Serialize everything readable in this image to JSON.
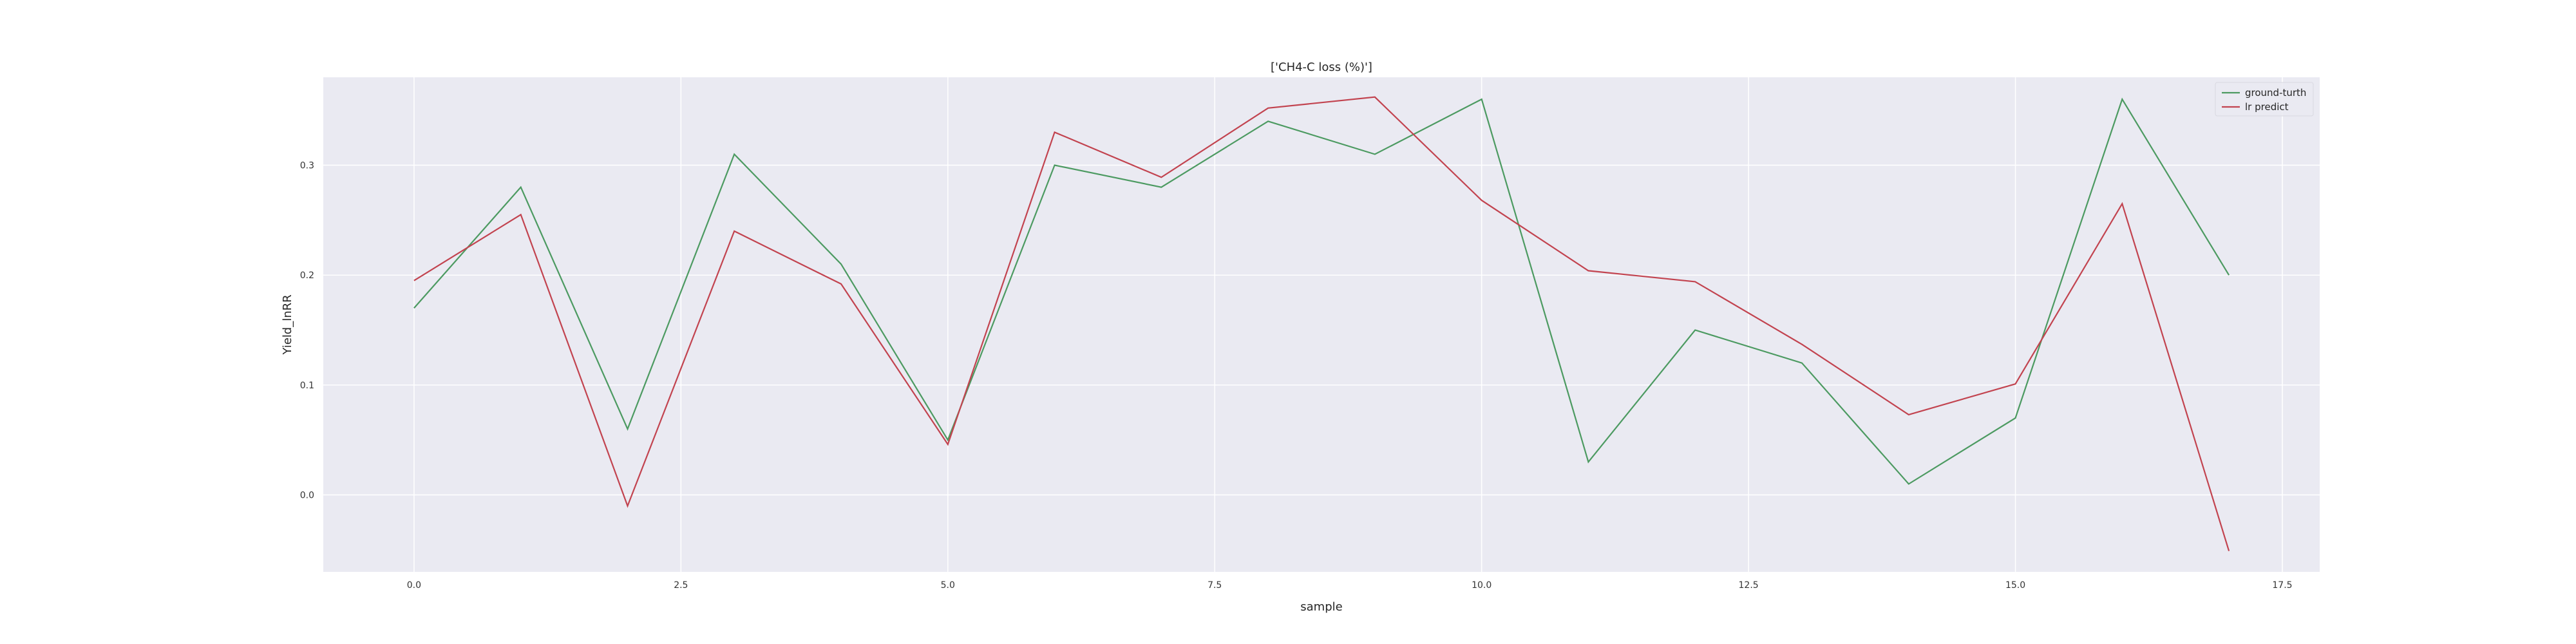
{
  "chart_data": {
    "type": "line",
    "title": "['CH4-C loss (%)']",
    "xlabel": "sample",
    "ylabel": "Yield_lnRR",
    "xlim": [
      -0.85,
      17.85
    ],
    "ylim": [
      -0.07,
      0.38
    ],
    "xticks": [
      0.0,
      2.5,
      5.0,
      7.5,
      10.0,
      12.5,
      15.0,
      17.5
    ],
    "xtick_labels": [
      "0.0",
      "2.5",
      "5.0",
      "7.5",
      "10.0",
      "12.5",
      "15.0",
      "17.5"
    ],
    "yticks": [
      0.0,
      0.1,
      0.2,
      0.3
    ],
    "ytick_labels": [
      "0.0",
      "0.1",
      "0.2",
      "0.3"
    ],
    "grid": true,
    "legend_position": "top-right",
    "x": [
      0,
      1,
      2,
      3,
      4,
      5,
      6,
      7,
      8,
      9,
      10,
      11,
      12,
      13,
      14,
      15,
      16,
      17
    ],
    "series": [
      {
        "name": "ground-turth",
        "color": "#4c9a61",
        "values": [
          0.17,
          0.28,
          0.06,
          0.31,
          0.21,
          0.05,
          0.3,
          0.28,
          0.34,
          0.31,
          0.36,
          0.03,
          0.15,
          0.12,
          0.01,
          0.07,
          0.36,
          0.2
        ]
      },
      {
        "name": "lr predict",
        "color": "#c2434f",
        "values": [
          0.195,
          0.255,
          -0.01,
          0.24,
          0.192,
          0.046,
          0.33,
          0.289,
          0.352,
          0.362,
          0.268,
          0.204,
          0.194,
          0.137,
          0.073,
          0.101,
          0.265,
          -0.051
        ]
      }
    ],
    "colors": {
      "plot_background": "#eaeaf2",
      "grid": "#ffffff"
    }
  }
}
